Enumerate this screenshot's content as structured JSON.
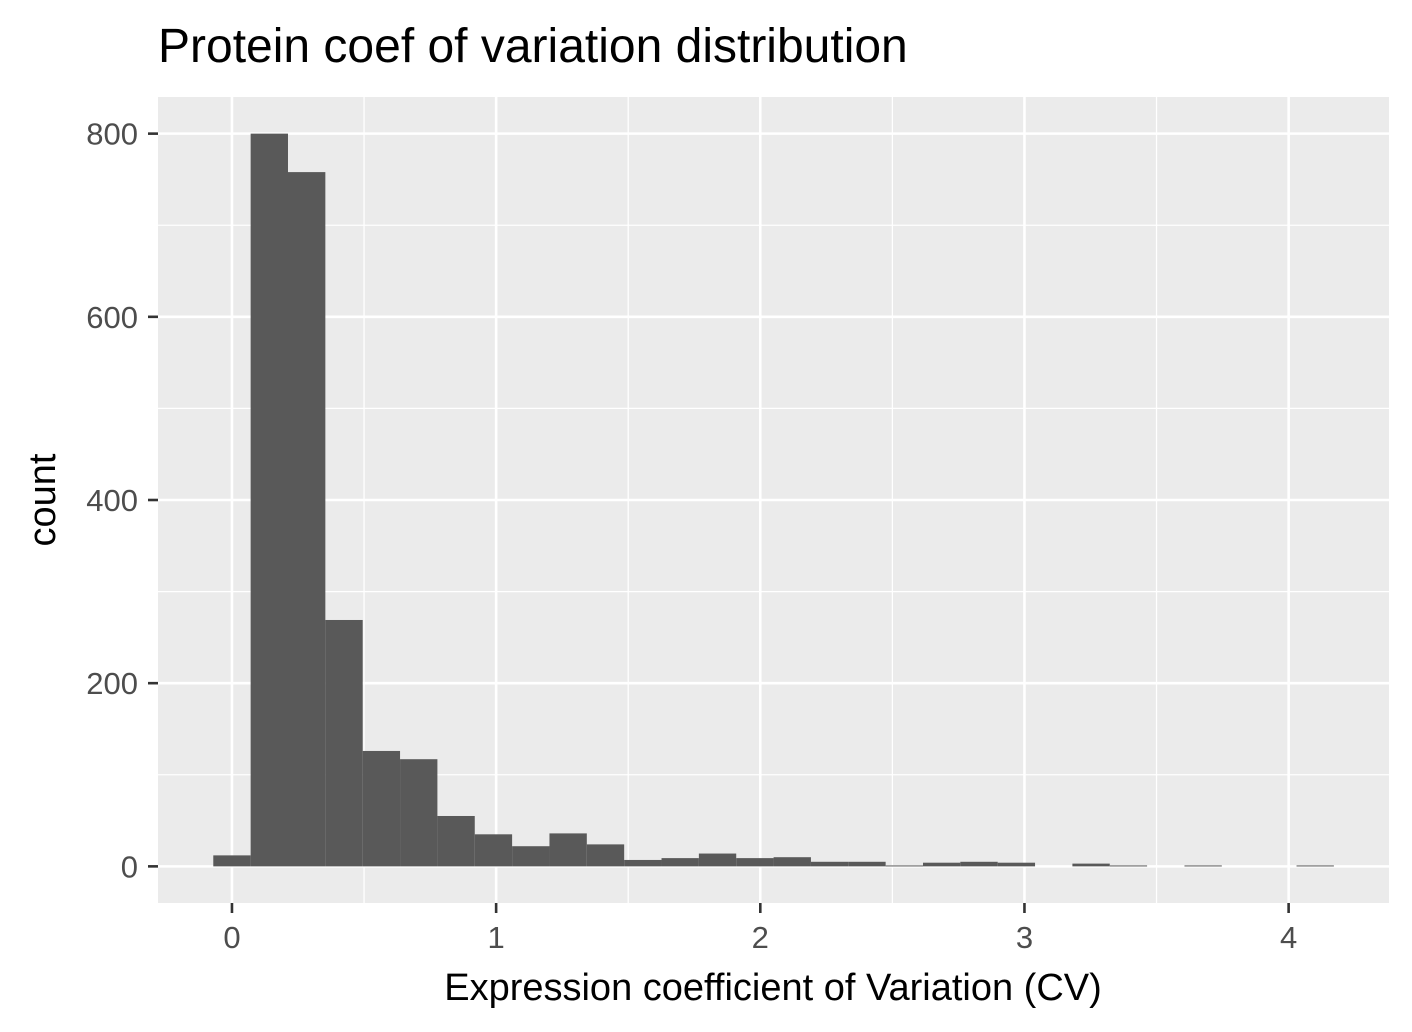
{
  "chart_data": {
    "type": "bar",
    "subtype": "histogram",
    "title": "Protein coef of variation distribution",
    "xlabel": "Expression coefficient of Variation (CV)",
    "ylabel": "count",
    "xlim": [
      -0.28,
      4.38
    ],
    "ylim": [
      -40,
      840
    ],
    "x_ticks": [
      0,
      1,
      2,
      3,
      4
    ],
    "x_tick_labels": [
      "0",
      "1",
      "2",
      "3",
      "4"
    ],
    "y_ticks": [
      0,
      200,
      400,
      600,
      800
    ],
    "y_tick_labels": [
      "0",
      "200",
      "400",
      "600",
      "800"
    ],
    "bin_width": 0.1414,
    "bins": [
      {
        "start": -0.0707,
        "end": 0.0707,
        "count": 12
      },
      {
        "start": 0.0707,
        "end": 0.2121,
        "count": 800
      },
      {
        "start": 0.2121,
        "end": 0.3535,
        "count": 758
      },
      {
        "start": 0.3535,
        "end": 0.4949,
        "count": 269
      },
      {
        "start": 0.4949,
        "end": 0.6363,
        "count": 126
      },
      {
        "start": 0.6363,
        "end": 0.7777,
        "count": 117
      },
      {
        "start": 0.7777,
        "end": 0.9191,
        "count": 55
      },
      {
        "start": 0.9191,
        "end": 1.0605,
        "count": 35
      },
      {
        "start": 1.0605,
        "end": 1.2019,
        "count": 22
      },
      {
        "start": 1.2019,
        "end": 1.3433,
        "count": 36
      },
      {
        "start": 1.3433,
        "end": 1.4847,
        "count": 24
      },
      {
        "start": 1.4847,
        "end": 1.6261,
        "count": 7
      },
      {
        "start": 1.6261,
        "end": 1.7675,
        "count": 9
      },
      {
        "start": 1.7675,
        "end": 1.9089,
        "count": 14
      },
      {
        "start": 1.9089,
        "end": 2.0503,
        "count": 9
      },
      {
        "start": 2.0503,
        "end": 2.1917,
        "count": 10
      },
      {
        "start": 2.1917,
        "end": 2.3331,
        "count": 5
      },
      {
        "start": 2.3331,
        "end": 2.4745,
        "count": 5
      },
      {
        "start": 2.4745,
        "end": 2.6159,
        "count": 1
      },
      {
        "start": 2.6159,
        "end": 2.7573,
        "count": 4
      },
      {
        "start": 2.7573,
        "end": 2.8987,
        "count": 5
      },
      {
        "start": 2.8987,
        "end": 3.0401,
        "count": 4
      },
      {
        "start": 3.0401,
        "end": 3.1815,
        "count": 0
      },
      {
        "start": 3.1815,
        "end": 3.3229,
        "count": 3
      },
      {
        "start": 3.3229,
        "end": 3.4643,
        "count": 1
      },
      {
        "start": 3.4643,
        "end": 3.6057,
        "count": 0
      },
      {
        "start": 3.6057,
        "end": 3.7471,
        "count": 1
      },
      {
        "start": 3.7471,
        "end": 3.8885,
        "count": 0
      },
      {
        "start": 3.8885,
        "end": 4.0299,
        "count": 0
      },
      {
        "start": 4.0299,
        "end": 4.1713,
        "count": 1
      }
    ],
    "grid": true,
    "legend": "none",
    "colors": {
      "bar": "#595959",
      "panel_background": "#ebebeb",
      "grid": "#ffffff",
      "tick": "#333333",
      "tick_label": "#4d4d4d"
    }
  }
}
